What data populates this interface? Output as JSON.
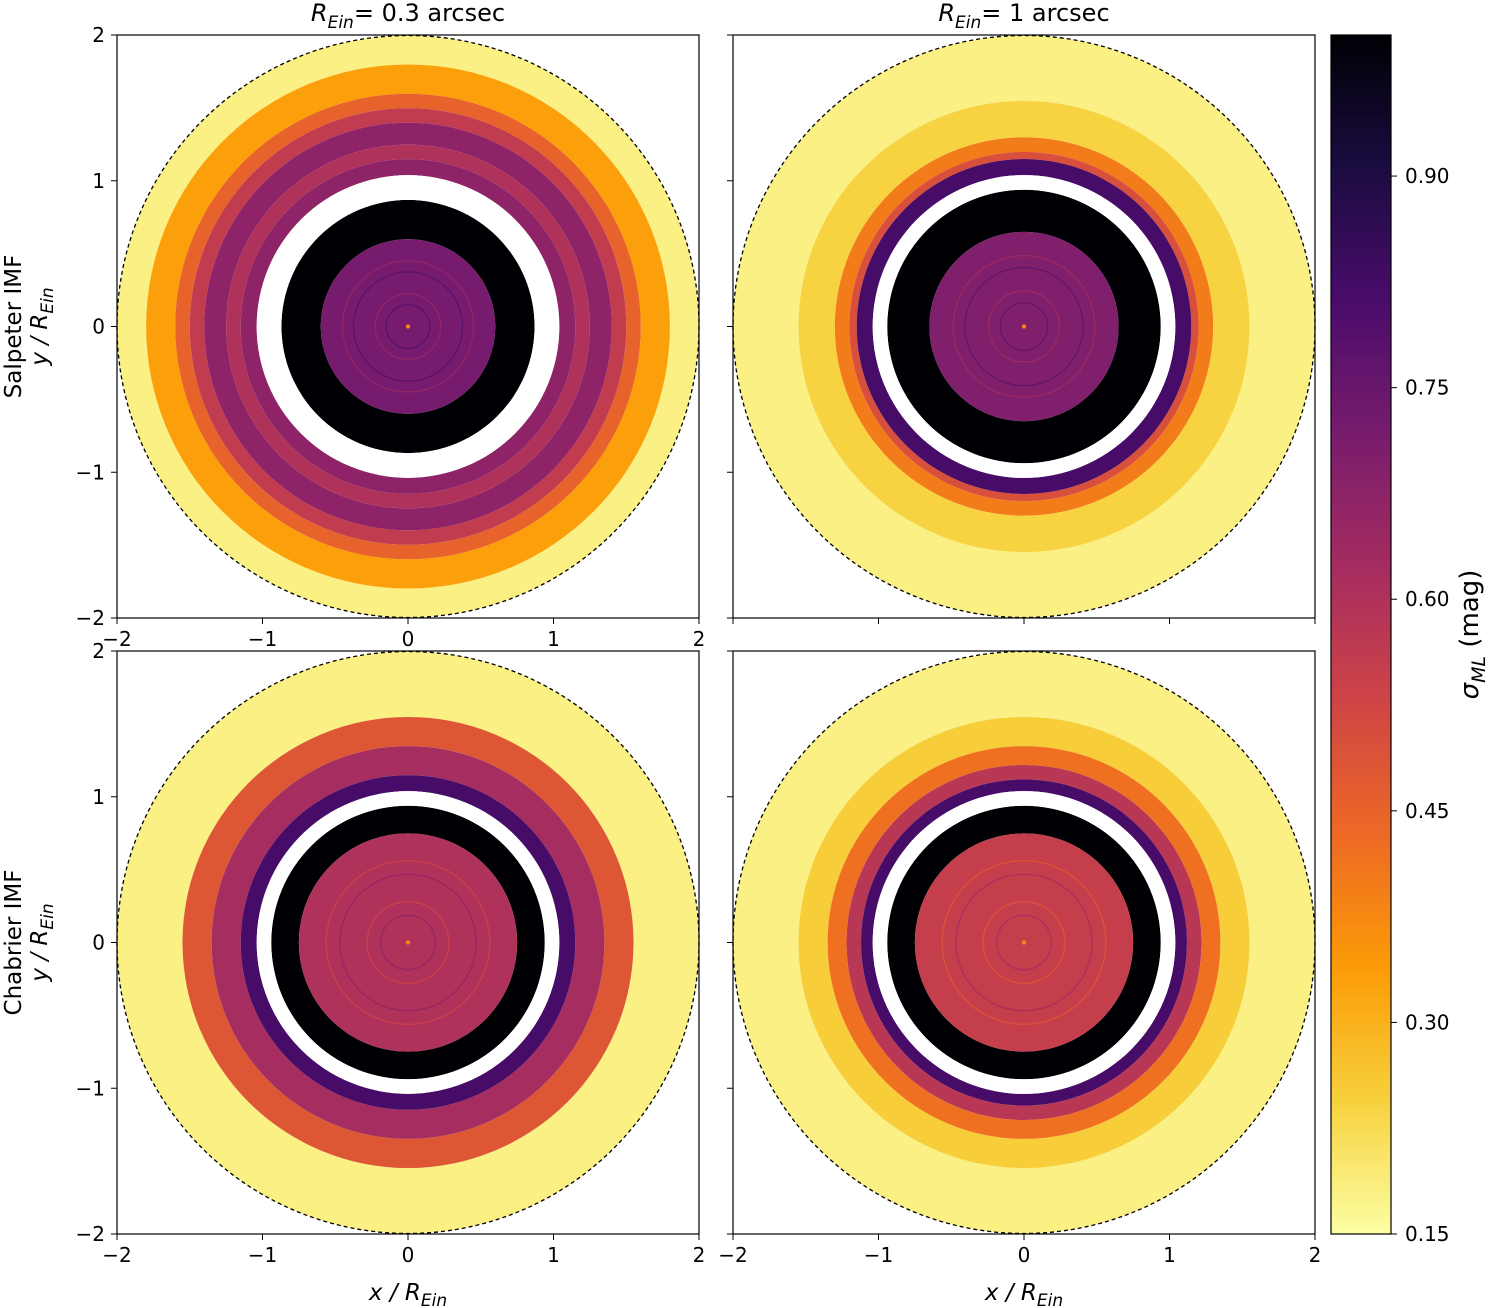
{
  "chart_data": [
    {
      "type": "heatmap",
      "panel": "salpeter-r03",
      "title_main": "R",
      "title_sub": "Ein",
      "title_rest": "= 0.3 arcsec",
      "ylabel_line1": "Salpeter IMF",
      "ylabel_main": "y / R",
      "ylabel_sub": "Ein",
      "xlim": [
        -2,
        2
      ],
      "ylim": [
        -2,
        2
      ],
      "xticks": [
        "−2",
        "−1",
        "0",
        "1",
        "2"
      ],
      "yticks": [
        "−2",
        "−1",
        "0",
        "1",
        "2"
      ],
      "gap_ring": [
        0.87,
        1.04
      ],
      "outer_radius": 2.0,
      "rings": [
        {
          "r_in": 1.8,
          "r_out": 2.0,
          "value": 0.18
        },
        {
          "r_in": 1.6,
          "r_out": 1.8,
          "value": 0.33
        },
        {
          "r_in": 1.5,
          "r_out": 1.6,
          "value": 0.45
        },
        {
          "r_in": 1.4,
          "r_out": 1.5,
          "value": 0.56
        },
        {
          "r_in": 1.25,
          "r_out": 1.4,
          "value": 0.67
        },
        {
          "r_in": 1.15,
          "r_out": 1.25,
          "value": 0.6
        },
        {
          "r_in": 1.04,
          "r_out": 1.15,
          "value": 0.67
        },
        {
          "r_in": 0.6,
          "r_out": 0.87,
          "value": 1.0
        },
        {
          "r_in": 0.0,
          "r_out": 0.6,
          "value": 0.72
        }
      ]
    },
    {
      "type": "heatmap",
      "panel": "salpeter-r1",
      "title_main": "R",
      "title_sub": "Ein",
      "title_rest": "= 1 arcsec",
      "xlim": [
        -2,
        2
      ],
      "ylim": [
        -2,
        2
      ],
      "gap_ring": [
        0.94,
        1.04
      ],
      "outer_radius": 2.0,
      "rings": [
        {
          "r_in": 1.55,
          "r_out": 2.0,
          "value": 0.18
        },
        {
          "r_in": 1.3,
          "r_out": 1.55,
          "value": 0.24
        },
        {
          "r_in": 1.2,
          "r_out": 1.3,
          "value": 0.4
        },
        {
          "r_in": 1.15,
          "r_out": 1.2,
          "value": 0.5
        },
        {
          "r_in": 1.04,
          "r_out": 1.15,
          "value": 0.82
        },
        {
          "r_in": 0.65,
          "r_out": 0.94,
          "value": 1.0
        },
        {
          "r_in": 0.0,
          "r_out": 0.65,
          "value": 0.7
        }
      ]
    },
    {
      "type": "heatmap",
      "panel": "chabrier-r03",
      "ylabel_line1": "Chabrier IMF",
      "ylabel_main": "y / R",
      "ylabel_sub": "Ein",
      "xlabel_main": "x / R",
      "xlabel_sub": "Ein",
      "xlim": [
        -2,
        2
      ],
      "ylim": [
        -2,
        2
      ],
      "xticks": [
        "−2",
        "−1",
        "0",
        "1",
        "2"
      ],
      "yticks": [
        "−2",
        "−1",
        "0",
        "1",
        "2"
      ],
      "gap_ring": [
        0.94,
        1.04
      ],
      "outer_radius": 2.0,
      "rings": [
        {
          "r_in": 1.55,
          "r_out": 2.0,
          "value": 0.18
        },
        {
          "r_in": 1.35,
          "r_out": 1.55,
          "value": 0.48
        },
        {
          "r_in": 1.15,
          "r_out": 1.35,
          "value": 0.62
        },
        {
          "r_in": 1.04,
          "r_out": 1.15,
          "value": 0.82
        },
        {
          "r_in": 0.75,
          "r_out": 0.94,
          "value": 1.0
        },
        {
          "r_in": 0.0,
          "r_out": 0.75,
          "value": 0.6
        }
      ]
    },
    {
      "type": "heatmap",
      "panel": "chabrier-r1",
      "xlabel_main": "x / R",
      "xlabel_sub": "Ein",
      "xlim": [
        -2,
        2
      ],
      "ylim": [
        -2,
        2
      ],
      "xticks": [
        "−2",
        "−1",
        "0",
        "1",
        "2"
      ],
      "gap_ring": [
        0.94,
        1.04
      ],
      "outer_radius": 2.0,
      "rings": [
        {
          "r_in": 1.55,
          "r_out": 2.0,
          "value": 0.18
        },
        {
          "r_in": 1.35,
          "r_out": 1.55,
          "value": 0.25
        },
        {
          "r_in": 1.22,
          "r_out": 1.35,
          "value": 0.42
        },
        {
          "r_in": 1.12,
          "r_out": 1.22,
          "value": 0.58
        },
        {
          "r_in": 1.04,
          "r_out": 1.12,
          "value": 0.82
        },
        {
          "r_in": 0.75,
          "r_out": 0.94,
          "value": 1.0
        },
        {
          "r_in": 0.0,
          "r_out": 0.75,
          "value": 0.55
        }
      ]
    }
  ],
  "colorbar": {
    "label_main": "σ",
    "label_sub": "ML",
    "label_rest": " (mag)",
    "min": 0.15,
    "max": 1.0,
    "ticks": [
      {
        "value": 0.15,
        "label": "0.15"
      },
      {
        "value": 0.3,
        "label": "0.30"
      },
      {
        "value": 0.45,
        "label": "0.45"
      },
      {
        "value": 0.6,
        "label": "0.60"
      },
      {
        "value": 0.75,
        "label": "0.75"
      },
      {
        "value": 0.9,
        "label": "0.90"
      }
    ],
    "colormap": "inferno-reversed",
    "stops": [
      "#fcffa4",
      "#f7d13d",
      "#fb9b06",
      "#ed6925",
      "#cf4446",
      "#a52c60",
      "#781c6d",
      "#4a0c6b",
      "#1b0c41",
      "#000004"
    ]
  }
}
